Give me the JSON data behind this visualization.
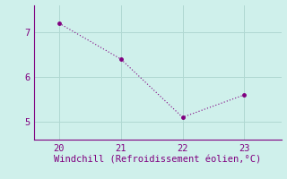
{
  "x": [
    20,
    21,
    22,
    23
  ],
  "y": [
    7.2,
    6.4,
    5.1,
    5.6
  ],
  "line_color": "#800080",
  "marker": "o",
  "marker_size": 2.5,
  "bg_color": "#cff0eb",
  "grid_color": "#b0d8d2",
  "spine_color": "#800080",
  "xlabel": "Windchill (Refroidissement éolien,°C)",
  "xlabel_color": "#800080",
  "tick_color": "#800080",
  "xlim": [
    19.6,
    23.6
  ],
  "ylim": [
    4.6,
    7.6
  ],
  "xticks": [
    20,
    21,
    22,
    23
  ],
  "yticks": [
    5,
    6,
    7
  ],
  "xlabel_fontsize": 7.5,
  "tick_fontsize": 7.5,
  "line_width": 0.8
}
